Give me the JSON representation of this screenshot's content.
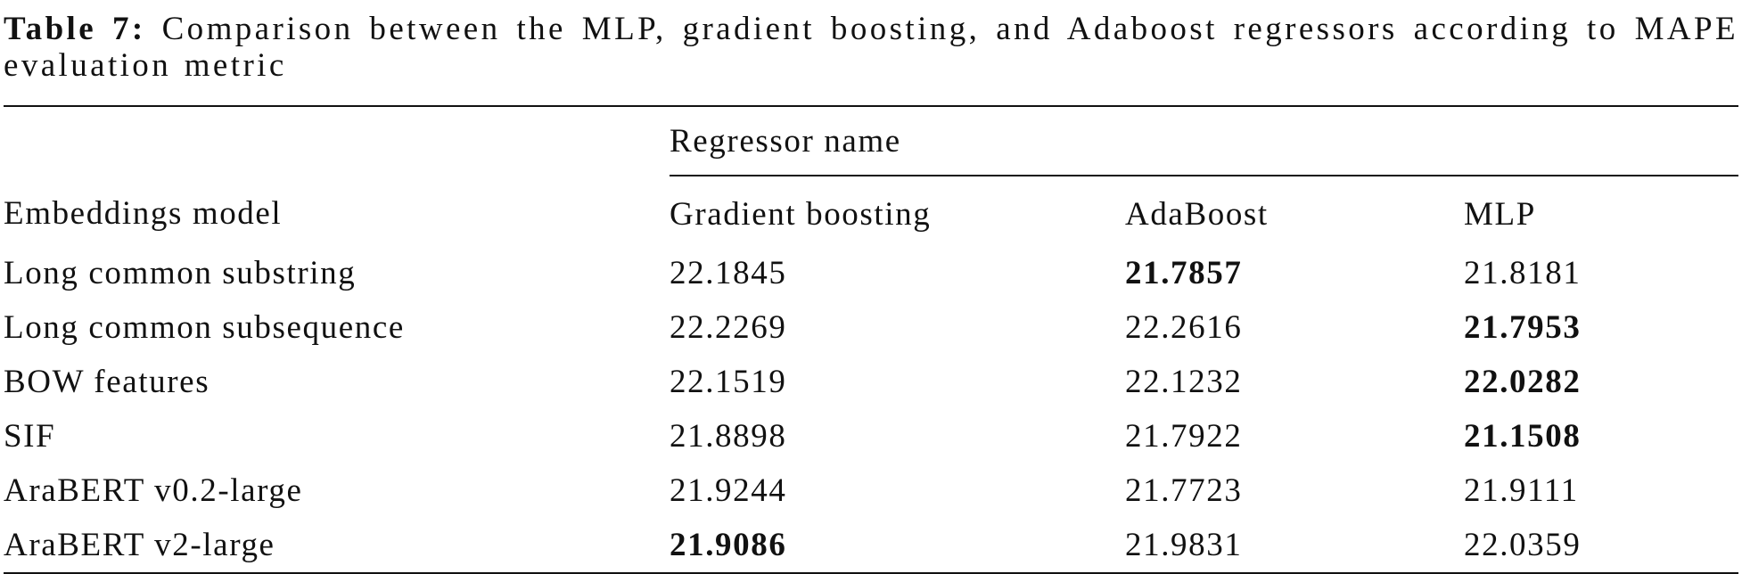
{
  "caption": {
    "label": "Table 7:",
    "text": "Comparison between the MLP, gradient boosting, and Adaboost regressors according to MAPE evaluation metric"
  },
  "table": {
    "group_header": "Regressor name",
    "columns": [
      "Embeddings model",
      "Gradient boosting",
      "AdaBoost",
      "MLP"
    ],
    "rows": [
      [
        "Long common substring",
        "22.1845",
        "21.7857",
        "21.8181"
      ],
      [
        "Long common subsequence",
        "22.2269",
        "22.2616",
        "21.7953"
      ],
      [
        "BOW features",
        "22.1519",
        "22.1232",
        "22.0282"
      ],
      [
        "SIF",
        "21.8898",
        "21.7922",
        "21.1508"
      ],
      [
        "AraBERT v0.2-large",
        "21.9244",
        "21.7723",
        "21.9111"
      ],
      [
        "AraBERT v2-large",
        "21.9086",
        "21.9831",
        "22.0359"
      ]
    ]
  }
}
